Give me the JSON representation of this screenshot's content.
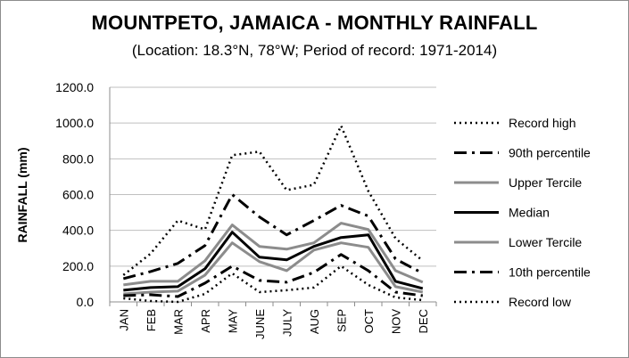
{
  "chart_data": {
    "type": "line",
    "title": "MOUNTPETO, JAMAICA - MONTHLY RAINFALL",
    "subtitle": "(Location: 18.3°N, 78°W; Period of record: 1971-2014)",
    "ylabel": "RAINFALL (mm)",
    "xlabel": "",
    "ylim": [
      0,
      1200
    ],
    "yticks": [
      "0.0",
      "200.0",
      "400.0",
      "600.0",
      "800.0",
      "1000.0",
      "1200.0"
    ],
    "grid": true,
    "legend_position": "right",
    "categories": [
      "JAN",
      "FEB",
      "MAR",
      "APR",
      "MAY",
      "JUNE",
      "JULY",
      "AUG",
      "SEP",
      "OCT",
      "NOV",
      "DEC"
    ],
    "series": [
      {
        "name": "Record high",
        "style": "dotted",
        "color": "#000000",
        "width": 2.5,
        "values": [
          150,
          270,
          455,
          405,
          820,
          840,
          625,
          655,
          985,
          620,
          355,
          230
        ]
      },
      {
        "name": "90th percentile",
        "style": "dashdot",
        "color": "#000000",
        "width": 3,
        "values": [
          130,
          170,
          215,
          315,
          600,
          475,
          375,
          455,
          540,
          480,
          240,
          160
        ]
      },
      {
        "name": "Upper Tercile",
        "style": "solid",
        "color": "#8c8c8c",
        "width": 3,
        "values": [
          95,
          115,
          115,
          230,
          430,
          310,
          295,
          330,
          440,
          405,
          175,
          110
        ]
      },
      {
        "name": "Median",
        "style": "solid",
        "color": "#000000",
        "width": 3,
        "values": [
          65,
          80,
          85,
          185,
          390,
          250,
          235,
          310,
          360,
          375,
          115,
          75
        ]
      },
      {
        "name": "Lower Tercile",
        "style": "solid",
        "color": "#8c8c8c",
        "width": 3,
        "values": [
          45,
          55,
          60,
          150,
          330,
          225,
          175,
          290,
          330,
          305,
          85,
          55
        ]
      },
      {
        "name": "10th percentile",
        "style": "dashdot",
        "color": "#000000",
        "width": 3,
        "values": [
          35,
          40,
          30,
          105,
          200,
          120,
          110,
          165,
          265,
          175,
          55,
          35
        ]
      },
      {
        "name": "Record low",
        "style": "dotted",
        "color": "#000000",
        "width": 2.5,
        "values": [
          20,
          5,
          0,
          45,
          160,
          55,
          65,
          80,
          200,
          95,
          25,
          10
        ]
      }
    ]
  }
}
